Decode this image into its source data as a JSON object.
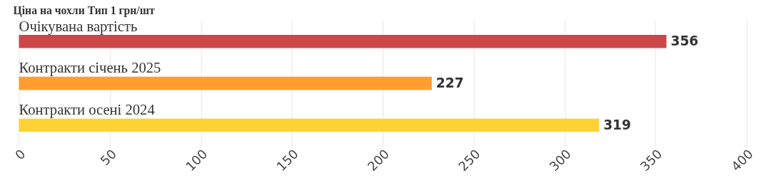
{
  "chart_data": {
    "type": "bar",
    "orientation": "horizontal",
    "title": "Ціна на чохли Тип 1 грн/шт",
    "categories": [
      "Очікувана вартість",
      "Контракти січень 2025",
      "Контракти осені 2024"
    ],
    "values": [
      356,
      227,
      319
    ],
    "colors": [
      "#cc4748",
      "#ff9e2f",
      "#ffd234"
    ],
    "xlim": [
      0,
      400
    ],
    "xticks": [
      0,
      50,
      100,
      150,
      200,
      250,
      300,
      350,
      400
    ],
    "grid": "x",
    "data_labels": true
  }
}
